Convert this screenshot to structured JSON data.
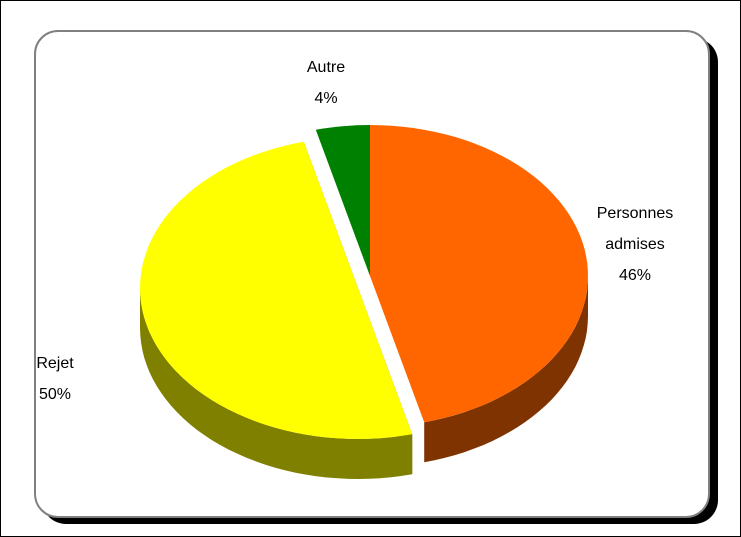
{
  "chart_data": {
    "type": "pie",
    "style": "3d-exploded",
    "slices": [
      {
        "name": "Personnes admises",
        "value": 46,
        "label_line1": "Personnes",
        "label_line2": "admises",
        "pct": "46%",
        "color": "#ff6600",
        "side_color": "#7f3300"
      },
      {
        "name": "Rejet",
        "value": 50,
        "label_line1": "Rejet",
        "label_line2": "",
        "pct": "50%",
        "color": "#ffff00",
        "side_color": "#7f7f00"
      },
      {
        "name": "Autre",
        "value": 4,
        "label_line1": "Autre",
        "label_line2": "",
        "pct": "4%",
        "color": "#008000",
        "side_color": "#004000"
      }
    ]
  }
}
